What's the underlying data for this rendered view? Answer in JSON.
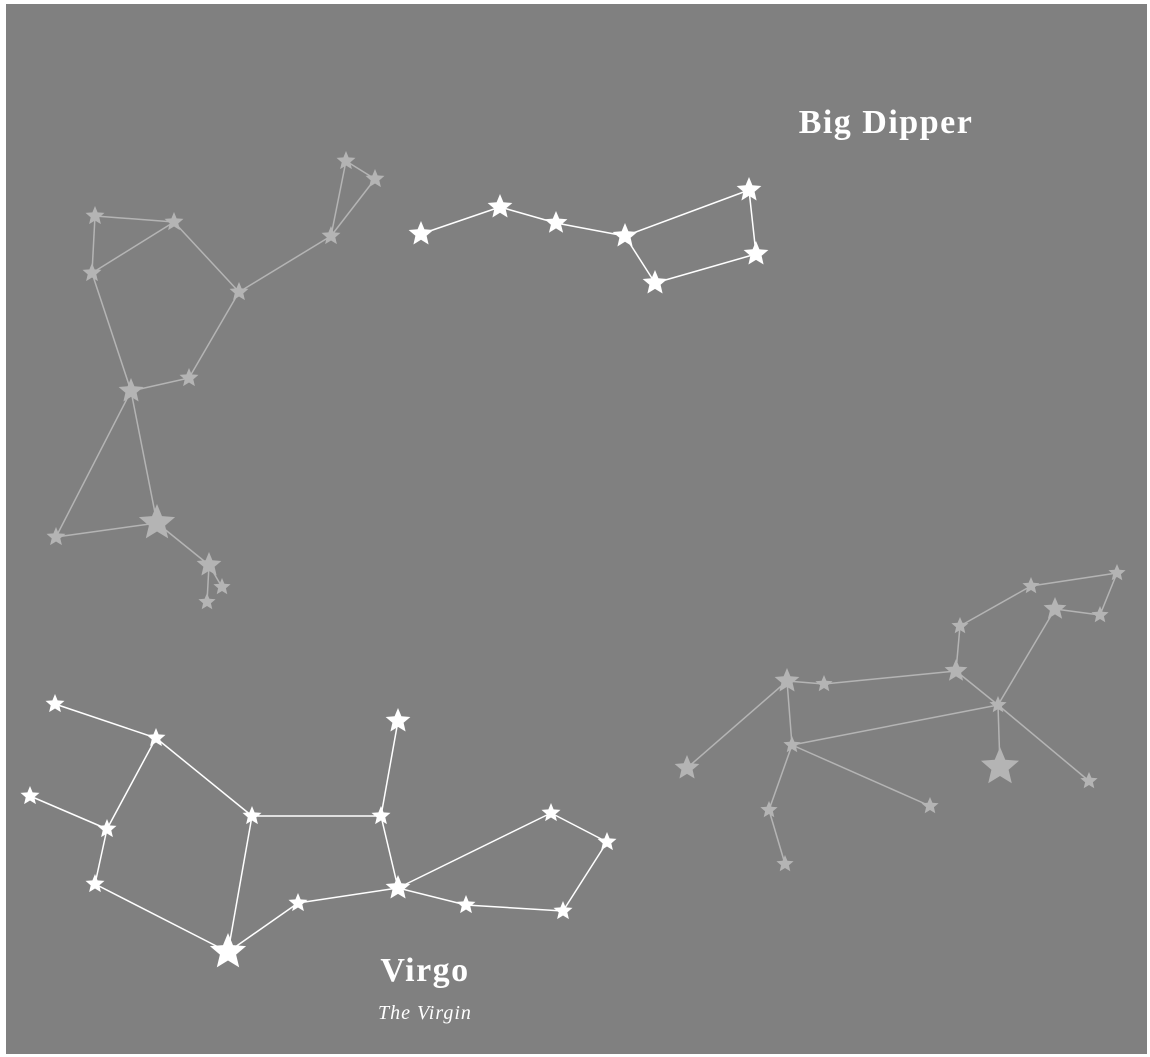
{
  "labels": {
    "big_dipper": "Big Dipper",
    "virgo": "Virgo",
    "virgo_subtitle": "The Virgin"
  }
}
